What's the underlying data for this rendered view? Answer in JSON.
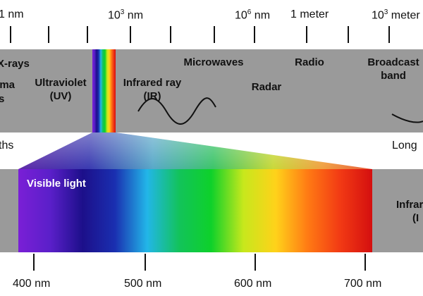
{
  "scale_labels": {
    "nm": "1 nm",
    "k_nm_base": "10",
    "k_nm_exp": "3",
    "k_nm_unit": " nm",
    "m_nm_base": "10",
    "m_nm_exp": "6",
    "m_nm_unit": " nm",
    "meter": "1 meter",
    "k_meter_base": "10",
    "k_meter_exp": "3",
    "k_meter_unit": " meter"
  },
  "bands": {
    "xrays": "X-rays",
    "gamma_line1": "mma",
    "gamma_line2": "s",
    "uv_line1": "Ultraviolet",
    "uv_line2": "(UV)",
    "ir_line1": "Infrared ray",
    "ir_line2": "(IR)",
    "microwaves": "Microwaves",
    "radar": "Radar",
    "radio": "Radio",
    "broadcast_line1": "Broadcast",
    "broadcast_line2": "band"
  },
  "side_labels": {
    "shorter": "ths",
    "longer": "Long"
  },
  "visible": {
    "title": "Visible light",
    "right_line1": "Infrar",
    "right_line2": "(I"
  },
  "nm_ticks": [
    "400 nm",
    "500 nm",
    "600 nm",
    "700 nm"
  ],
  "colors": {
    "band_gray": "#9a9a9a",
    "spectrum": [
      "#7a1fd6",
      "#5a1fc9",
      "#1c0f8a",
      "#1a2fb0",
      "#22b6e8",
      "#12c35a",
      "#0ed12a",
      "#c7e81c",
      "#ffd21a",
      "#ff7a14",
      "#f23a14",
      "#d40f0f"
    ]
  }
}
